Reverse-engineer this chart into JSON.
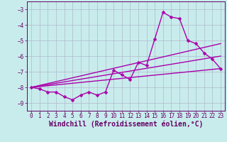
{
  "xlabel": "Windchill (Refroidissement éolien,°C)",
  "bg_color": "#c8ecec",
  "line_color": "#aa00aa",
  "grid_color": "#b0b8cc",
  "axis_color": "#660066",
  "xlim": [
    -0.5,
    23.5
  ],
  "ylim": [
    -9.5,
    -2.5
  ],
  "yticks": [
    -9,
    -8,
    -7,
    -6,
    -5,
    -4,
    -3
  ],
  "xticks": [
    0,
    1,
    2,
    3,
    4,
    5,
    6,
    7,
    8,
    9,
    10,
    11,
    12,
    13,
    14,
    15,
    16,
    17,
    18,
    19,
    20,
    21,
    22,
    23
  ],
  "main_data_x": [
    0,
    1,
    2,
    3,
    4,
    5,
    6,
    7,
    8,
    9,
    10,
    11,
    12,
    13,
    14,
    15,
    16,
    17,
    18,
    19,
    20,
    21,
    22,
    23
  ],
  "main_data_y": [
    -8.0,
    -8.1,
    -8.3,
    -8.3,
    -8.6,
    -8.8,
    -8.5,
    -8.3,
    -8.5,
    -8.3,
    -6.9,
    -7.2,
    -7.5,
    -6.4,
    -6.6,
    -4.9,
    -3.2,
    -3.5,
    -3.6,
    -5.0,
    -5.2,
    -5.8,
    -6.2,
    -6.8
  ],
  "line1_x": [
    0,
    23
  ],
  "line1_y": [
    -8.0,
    -5.2
  ],
  "line2_x": [
    0,
    23
  ],
  "line2_y": [
    -8.0,
    -6.0
  ],
  "line3_x": [
    0,
    23
  ],
  "line3_y": [
    -8.0,
    -6.8
  ],
  "tick_font_size": 5.5,
  "xlabel_font_size": 7,
  "line_width": 1.0,
  "marker": "D",
  "marker_size": 2.5
}
